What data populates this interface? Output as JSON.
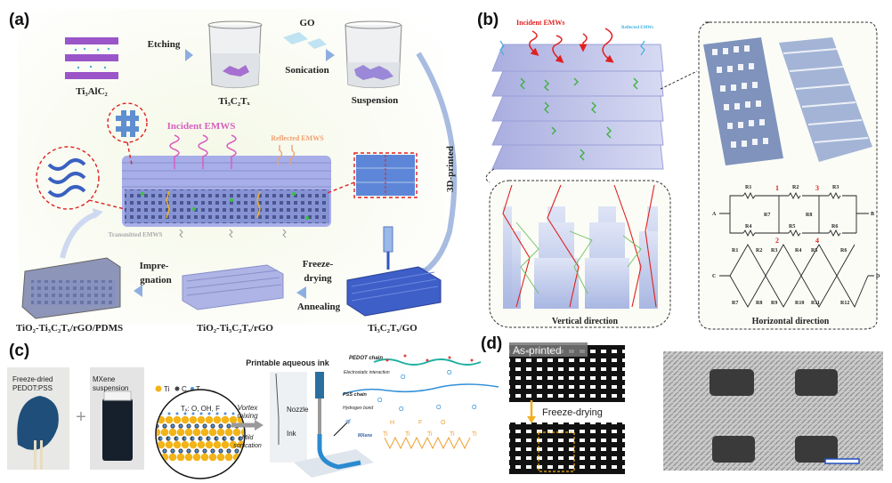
{
  "panels": {
    "a": {
      "label": "(a)",
      "precursor": "Ti₃AlC₂",
      "etching": "Etching",
      "mxene": "Ti₃C₂Tₓ",
      "go": "GO",
      "sonication": "Sonication",
      "suspension": "Suspension",
      "printed": "3D-printed",
      "incident": "Incident EMWS",
      "reflected": "Reflected EMWS",
      "transmitted": "Transmitted EMWS",
      "freeze_1": "Freeze-",
      "freeze_2": "drying",
      "annealing": "Annealing",
      "impreg_1": "Impre-",
      "impreg_2": "gnation",
      "product_go": "Ti₃C₂Tₓ/GO",
      "product_rgo": "TiO₂-Ti₃C₂Tₓ/rGO",
      "product_pdms": "TiO₂-Ti₃C₂Tₓ/rGO/PDMS"
    },
    "b": {
      "label": "(b)",
      "incident": "Incident EMWs",
      "reflected": "Reflected EMWs",
      "vertical": "Vertical direction",
      "horizontal": "Horizontal direction",
      "circuit": {
        "nodes": [
          "1",
          "2",
          "3",
          "4"
        ],
        "terminals": [
          "A",
          "B",
          "C",
          "D"
        ],
        "top_resistors": [
          "R1",
          "R2",
          "R3",
          "R4",
          "R5",
          "R6",
          "R7",
          "R8"
        ],
        "bottom_resistors": [
          "R1",
          "R2",
          "R3",
          "R4",
          "R5",
          "R6",
          "R7",
          "R8",
          "R9",
          "R10",
          "R11",
          "R12"
        ]
      }
    },
    "c": {
      "label": "(c)",
      "photo1": "Freeze-dried\nPEDOT:PSS",
      "photo1_l1": "Freeze-dried",
      "photo1_l2": "PEDOT:PSS",
      "photo2_l1": "MXene",
      "photo2_l2": "suspension",
      "plus": "+",
      "legend": [
        "Ti",
        "C",
        "Tₓ"
      ],
      "tx": "Tₓ: O, OH, F",
      "vortex_1": "Vortex",
      "vortex_2": "mixing",
      "mild_1": "Mild",
      "mild_2": "sonication",
      "ink_title": "Printable aqueous ink",
      "nozzle": "Nozzle",
      "ink": "Ink",
      "pedot": "PEDOT chain",
      "electrostatic": "Electrostatic interaction",
      "pss": "PSS chain",
      "hbond": "Hydrogen bond",
      "mxene": "MXene"
    },
    "d": {
      "label": "(d)",
      "as_printed": "As-printed",
      "freeze_drying": "Freeze-drying"
    }
  },
  "colors": {
    "incident_a": "#d960c0",
    "reflected_a": "#f0a070",
    "incident_b": "#e02020",
    "reflected_b": "#40b0e0",
    "arrow": "#9fb6e0",
    "scaffold": "#8b96d8",
    "dashed_red": "#e02020",
    "ti": "#f2b418",
    "c": "#444444",
    "tx": "#4a90d8",
    "chem_orange": "#f0a030",
    "chem_blue": "#2f8fd8",
    "chem_teal": "#20b0a0"
  }
}
